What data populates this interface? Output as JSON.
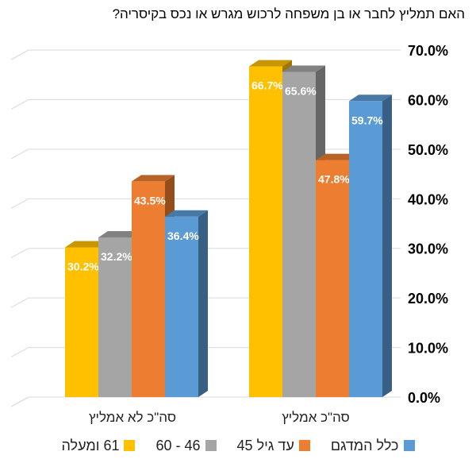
{
  "title": "האם תמליץ לחבר או בן משפחה לרכוש מגרש או נכס בקיסריה?",
  "chart_data": {
    "type": "bar",
    "title": "האם תמליץ לחבר או בן משפחה לרכוש מגרש או נכס בקיסריה?",
    "categories": [
      "סה\"כ אמליץ",
      "סה\"כ לא אמליץ"
    ],
    "series": [
      {
        "name": "61 ומעלה",
        "values": [
          66.7,
          30.2
        ],
        "color": "#FFC000"
      },
      {
        "name": "46 - 60",
        "values": [
          65.6,
          32.2
        ],
        "color": "#A5A5A5"
      },
      {
        "name": "עד גיל 45",
        "values": [
          47.8,
          43.5
        ],
        "color": "#ED7D31"
      },
      {
        "name": "כלל המדגם",
        "values": [
          59.7,
          36.4
        ],
        "color": "#5B9BD5"
      }
    ],
    "value_labels": [
      [
        "66.7%",
        "30.2%"
      ],
      [
        "65.6%",
        "32.2%"
      ],
      [
        "47.8%",
        "43.5%"
      ],
      [
        "59.7%",
        "36.4%"
      ]
    ],
    "ylim": [
      0,
      70
    ],
    "yticks": [
      "0.0%",
      "10.0%",
      "20.0%",
      "30.0%",
      "40.0%",
      "50.0%",
      "60.0%",
      "70.0%"
    ],
    "grid": true,
    "legend_position": "bottom",
    "style": "3d-clustered-column"
  }
}
